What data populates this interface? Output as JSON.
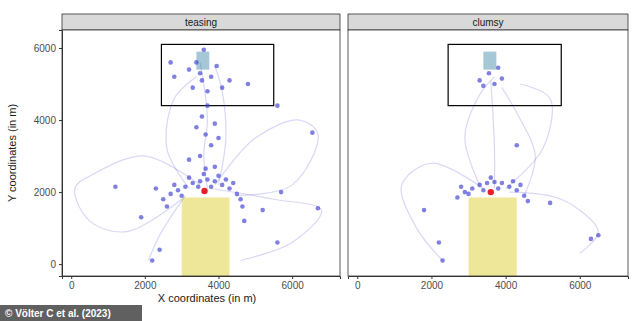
{
  "chart_data": {
    "type": "scatter",
    "x_label": "X coordinates (in m)",
    "y_label": "Y coordinates (in m)",
    "annotation": "© Völter C et al. (2023)",
    "xlim": [
      -250,
      7300
    ],
    "ylim": [
      -330,
      6500
    ],
    "xticks": [
      0,
      2000,
      4000,
      6000
    ],
    "yticks": [
      0,
      2000,
      4000,
      6000
    ],
    "color": "#3c3cd2",
    "regions": [
      {
        "x": [
          3000,
          4300
        ],
        "y": [
          -330,
          1850
        ],
        "color": "#eee79a"
      },
      {
        "x": [
          3400,
          3750
        ],
        "y": [
          5400,
          5900
        ],
        "color": "#a6c8d6"
      }
    ],
    "frame": {
      "x": [
        2450,
        5500
      ],
      "y": [
        4400,
        6100
      ],
      "color": "#000000"
    },
    "panels": [
      {
        "title": "teasing",
        "target": {
          "x": 3620,
          "y": 2030,
          "color": "#e8202a"
        },
        "points": {
          "x": [
            2500,
            2700,
            2900,
            3100,
            3300,
            3500,
            3700,
            3900,
            4100,
            4300,
            4500,
            4600,
            2600,
            4650,
            3200,
            3600,
            4000,
            3450,
            3800,
            4200,
            2800,
            4400,
            3000,
            3650,
            3900,
            3500,
            3800,
            3650,
            3900,
            3550,
            4000,
            3700,
            3400,
            3200,
            3200,
            3400,
            3550,
            3800,
            3950,
            3300,
            3700,
            4100,
            3500,
            2800,
            4300,
            3600,
            2700,
            4800,
            5600,
            6550,
            2300,
            1200,
            6700,
            5700,
            2400,
            2200,
            5600,
            4700,
            1900,
            5200
          ],
          "y": [
            1800,
            1950,
            2050,
            2150,
            2250,
            2300,
            2350,
            2300,
            2200,
            2100,
            1950,
            1800,
            1600,
            1600,
            2400,
            2500,
            2450,
            2150,
            2150,
            2350,
            2200,
            2250,
            1900,
            2650,
            2700,
            3000,
            3300,
            3600,
            3900,
            4100,
            3500,
            4400,
            3800,
            2900,
            5400,
            5600,
            5100,
            5200,
            5500,
            4900,
            4800,
            4900,
            5300,
            5200,
            5100,
            5950,
            5600,
            5000,
            4400,
            3650,
            2100,
            2150,
            1550,
            2000,
            400,
            100,
            600,
            1200,
            1300,
            1500
          ]
        },
        "trajectories": [
          {
            "x": [
              3700,
              3600,
              3700,
              3600,
              3500
            ],
            "y": [
              2100,
              3000,
              4000,
              5000,
              5600
            ]
          },
          {
            "x": [
              3500,
              2000,
              600,
              100,
              500,
              1500,
              3000
            ],
            "y": [
              2200,
              3000,
              2500,
              2100,
              1200,
              900,
              1800
            ]
          },
          {
            "x": [
              3900,
              5000,
              6200,
              6700,
              6000,
              4500
            ],
            "y": [
              2200,
              3500,
              4000,
              3600,
              2200,
              1900
            ]
          },
          {
            "x": [
              4000,
              4200,
              4100,
              3900
            ],
            "y": [
              2200,
              3500,
              4800,
              5500
            ]
          },
          {
            "x": [
              3200,
              2600,
              2800,
              3400
            ],
            "y": [
              2100,
              3200,
              4600,
              5200
            ]
          },
          {
            "x": [
              3800,
              5500,
              6800,
              6000,
              4600
            ],
            "y": [
              2100,
              1800,
              1500,
              600,
              100
            ]
          },
          {
            "x": [
              3100,
              2400,
              2100
            ],
            "y": [
              1900,
              800,
              100
            ]
          }
        ]
      },
      {
        "title": "clumsy",
        "target": {
          "x": 3600,
          "y": 2000,
          "color": "#e8202a"
        },
        "points": {
          "x": [
            2700,
            2900,
            3100,
            3300,
            3500,
            3700,
            3900,
            4100,
            4300,
            4500,
            4600,
            2800,
            3400,
            3800,
            4200,
            3600,
            3000,
            4400,
            3300,
            3700,
            3550,
            3900,
            3400,
            3800,
            6500,
            6300,
            2300,
            2200,
            4300,
            1800,
            5200
          ],
          "y": [
            1850,
            2000,
            2100,
            2200,
            2250,
            2280,
            2250,
            2150,
            2050,
            1900,
            1750,
            2150,
            2050,
            2100,
            2300,
            2400,
            1950,
            2200,
            5100,
            5000,
            5300,
            5150,
            4950,
            5450,
            800,
            700,
            100,
            600,
            3300,
            1500,
            1700
          ]
        },
        "trajectories": [
          {
            "x": [
              3700,
              3700,
              3650,
              3600
            ],
            "y": [
              2100,
              3200,
              4300,
              5100
            ]
          },
          {
            "x": [
              3400,
              2000,
              1200,
              1600,
              2300
            ],
            "y": [
              2100,
              2800,
              2200,
              1000,
              100
            ]
          },
          {
            "x": [
              4000,
              5000,
              5200,
              4400
            ],
            "y": [
              2100,
              3200,
              4600,
              5000
            ]
          },
          {
            "x": [
              4100,
              5500,
              6500,
              6000
            ],
            "y": [
              2000,
              1800,
              900,
              300
            ]
          },
          {
            "x": [
              3300,
              2900,
              3300,
              3700
            ],
            "y": [
              2200,
              3500,
              4700,
              5200
            ]
          },
          {
            "x": [
              4500,
              4800,
              4300,
              3900
            ],
            "y": [
              1900,
              3000,
              4200,
              4900
            ]
          }
        ]
      }
    ]
  }
}
